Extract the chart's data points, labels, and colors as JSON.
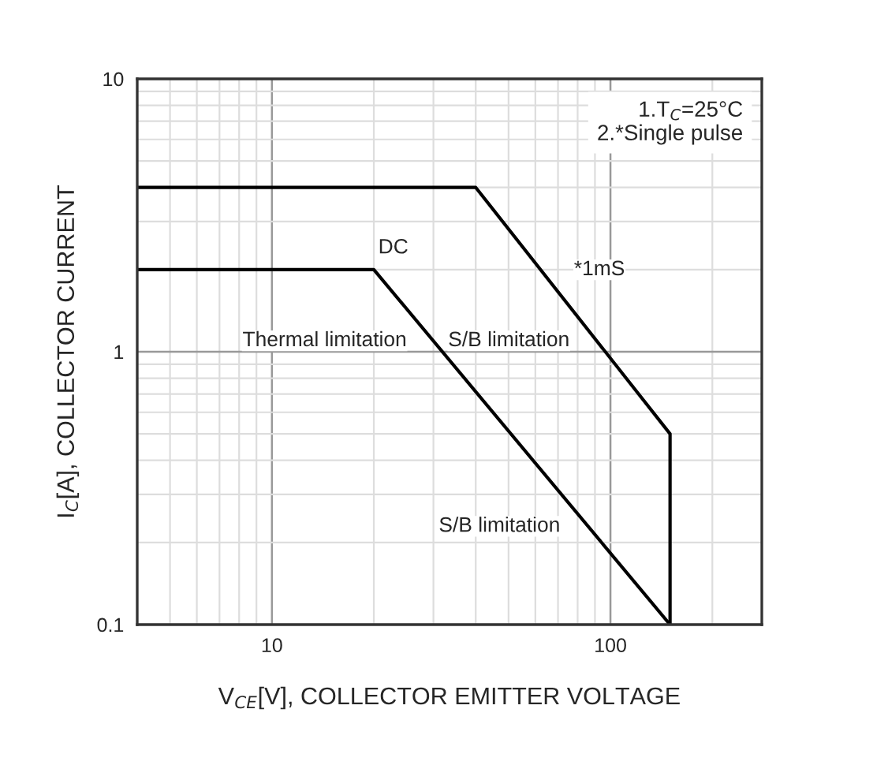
{
  "chart_data": {
    "type": "line",
    "log": "xy",
    "grid": true,
    "xlabel": "V$_{CE}$[V], COLLECTOR EMITTER VOLTAGE",
    "ylabel": "I$_{C}$[A], COLLECTOR CURRENT",
    "xlim": [
      4,
      280
    ],
    "ylim": [
      0.1,
      10
    ],
    "xticks": [
      10,
      100
    ],
    "yticks": [
      0.1,
      1,
      10
    ],
    "series": [
      {
        "color": "#000000",
        "x": [
          4,
          40,
          150,
          150
        ],
        "values": [
          4,
          4,
          0.5,
          0.1
        ]
      },
      {
        "color": "#000000",
        "x": [
          4,
          20,
          150
        ],
        "values": [
          2,
          2,
          0.1
        ]
      }
    ],
    "annotations": [
      "1.T$_{C}$=25°C\n2.*Single pulse",
      "*1mS",
      "DC",
      "Thermal limitation",
      "S/B limitation",
      "S/B limitation"
    ]
  }
}
